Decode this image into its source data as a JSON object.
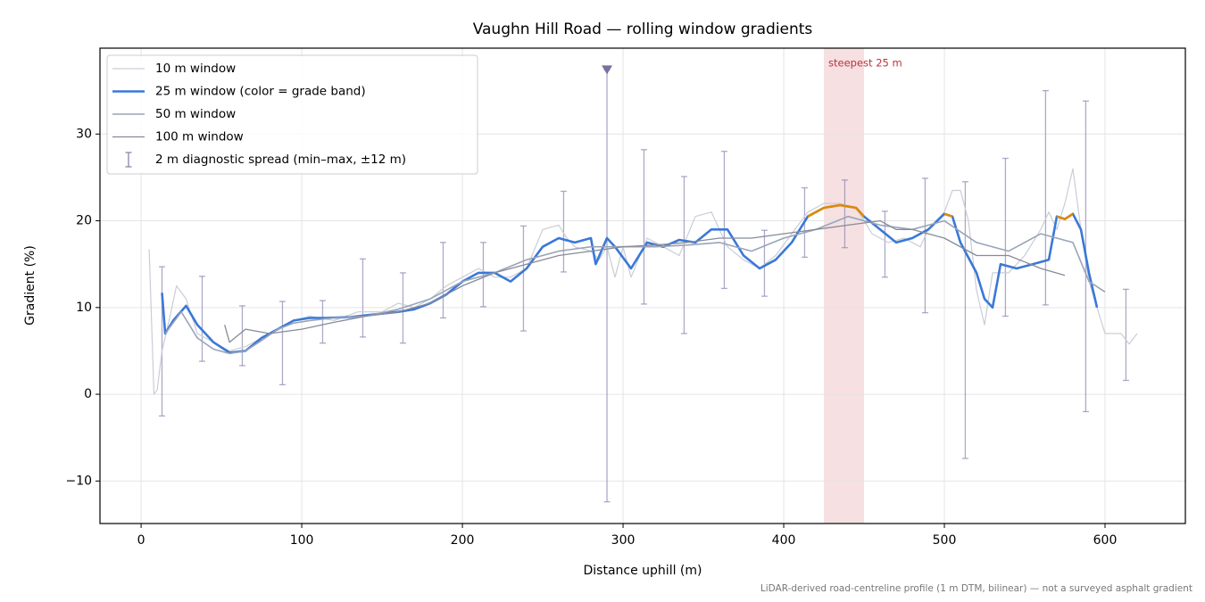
{
  "chart_data": {
    "type": "line",
    "title": "Vaughn Hill Road — rolling window gradients",
    "x_label": "Distance uphill (m)",
    "y_label": "Gradient (%)",
    "footnote": "LiDAR-derived road-centreline profile (1 m DTM, bilinear) — not a surveyed asphalt gradient",
    "xlim": [
      -25.6,
      650
    ],
    "ylim": [
      -14.9,
      39.9
    ],
    "xticks": [
      0,
      100,
      200,
      300,
      400,
      500,
      600
    ],
    "yticks": [
      {
        "value": -10,
        "label": "−10"
      },
      0,
      10,
      20,
      30
    ],
    "grid": true,
    "legend": "upper left",
    "series": [
      {
        "name": "10 m window",
        "color": "#c9cdd6",
        "width": 1.2,
        "x": [
          5,
          8,
          10,
          13,
          18,
          22,
          28,
          35,
          45,
          55,
          65,
          75,
          85,
          95,
          105,
          120,
          135,
          150,
          160,
          170,
          180,
          190,
          200,
          210,
          220,
          230,
          240,
          250,
          260,
          265,
          270,
          280,
          285,
          290,
          295,
          300,
          305,
          315,
          325,
          335,
          345,
          355,
          365,
          375,
          385,
          395,
          405,
          415,
          425,
          435,
          445,
          455,
          465,
          475,
          485,
          490,
          500,
          505,
          510,
          515,
          520,
          525,
          530,
          540,
          550,
          560,
          565,
          570,
          575,
          580,
          585,
          590,
          595,
          600,
          610,
          615,
          620
        ],
        "values": [
          16.7,
          0,
          0.5,
          5,
          9,
          12.5,
          11,
          7,
          6,
          5,
          5.5,
          6.5,
          7.5,
          8.5,
          9,
          8.5,
          9.5,
          9.5,
          10.5,
          10,
          11,
          12.5,
          13.5,
          14.5,
          13.5,
          13.5,
          14.5,
          19,
          19.5,
          18,
          17,
          16.5,
          15.5,
          17,
          13.5,
          17,
          13.5,
          18,
          17,
          16,
          20.5,
          21,
          17,
          15.5,
          14.5,
          16,
          18.5,
          21,
          22,
          22,
          21.5,
          18.5,
          17.5,
          18,
          17,
          19,
          21,
          23.5,
          23.5,
          20,
          12,
          8,
          14,
          14,
          16,
          19,
          21,
          19,
          22,
          26,
          19,
          13,
          10,
          7,
          7,
          5.8,
          7
        ]
      },
      {
        "name": "25 m window (color = grade band)",
        "color": "#3a78d8",
        "width": 2.6,
        "grade_bands": [
          {
            "min": 20,
            "color": "#e08a00"
          }
        ],
        "x": [
          13,
          15,
          20,
          28,
          35,
          45,
          55,
          65,
          75,
          85,
          95,
          105,
          115,
          130,
          145,
          160,
          170,
          180,
          190,
          200,
          210,
          220,
          230,
          240,
          250,
          260,
          270,
          280,
          283,
          290,
          295,
          305,
          315,
          325,
          335,
          345,
          355,
          365,
          375,
          385,
          395,
          405,
          415,
          425,
          435,
          445,
          450,
          460,
          470,
          480,
          490,
          500,
          505,
          510,
          520,
          525,
          530,
          535,
          545,
          555,
          565,
          570,
          575,
          580,
          585,
          590,
          595
        ],
        "values": [
          11.7,
          7,
          8.5,
          10.2,
          8,
          6,
          4.8,
          5,
          6.5,
          7.5,
          8.5,
          8.8,
          8.8,
          8.9,
          9.2,
          9.5,
          9.8,
          10.5,
          11.5,
          13,
          14,
          14,
          13,
          14.5,
          17,
          18,
          17.5,
          18,
          15,
          18,
          17,
          14.5,
          17.5,
          17,
          17.8,
          17.5,
          19,
          19,
          16,
          14.5,
          15.5,
          17.5,
          20.5,
          21.5,
          21.8,
          21.5,
          20.5,
          19,
          17.5,
          18,
          19,
          20.8,
          20.5,
          17.5,
          14,
          11,
          10,
          15,
          14.5,
          15,
          15.5,
          20.5,
          20.2,
          20.8,
          19,
          14,
          10
        ]
      },
      {
        "name": "50 m window",
        "color": "#9aa4b8",
        "width": 1.6,
        "x": [
          15,
          25,
          35,
          45,
          55,
          65,
          75,
          85,
          95,
          105,
          120,
          140,
          160,
          180,
          200,
          220,
          240,
          260,
          280,
          300,
          320,
          340,
          360,
          380,
          400,
          420,
          440,
          460,
          480,
          500,
          520,
          540,
          560,
          570,
          580,
          590,
          600
        ],
        "values": [
          7,
          9.5,
          6.5,
          5.2,
          4.7,
          5,
          6.2,
          7.5,
          8.2,
          8.5,
          8.8,
          9,
          9.8,
          11,
          13,
          14,
          15.5,
          16.5,
          17,
          17,
          17,
          17.2,
          17.5,
          16.5,
          18,
          19,
          20.5,
          19.5,
          19,
          20,
          17.5,
          16.5,
          18.5,
          18,
          17.5,
          13,
          11.8
        ]
      },
      {
        "name": "100 m window",
        "color": "#858b99",
        "width": 1.3,
        "x": [
          52,
          55,
          65,
          80,
          100,
          120,
          140,
          160,
          180,
          200,
          220,
          240,
          260,
          280,
          300,
          320,
          340,
          360,
          380,
          400,
          420,
          440,
          460,
          470,
          480,
          500,
          520,
          540,
          560,
          575
        ],
        "values": [
          8,
          6,
          7.5,
          7,
          7.5,
          8.3,
          9,
          9.5,
          10.5,
          12.5,
          14,
          15,
          16,
          16.5,
          17,
          17.2,
          17.5,
          18,
          18,
          18.5,
          19,
          19.5,
          20,
          19,
          19,
          18,
          16,
          16,
          14.5,
          13.7
        ]
      }
    ],
    "spread": {
      "name": "2 m diagnostic spread (min–max, ±12 m)",
      "color": "#8a86b0",
      "x": [
        13,
        38,
        63,
        88,
        113,
        138,
        163,
        188,
        213,
        238,
        263,
        290,
        313,
        338,
        363,
        388,
        413,
        438,
        463,
        488,
        513,
        538,
        563,
        588,
        613
      ],
      "lows": [
        -2.5,
        3.8,
        3.3,
        1.1,
        5.9,
        6.6,
        5.9,
        8.8,
        10.1,
        7.3,
        14.1,
        -12.4,
        10.4,
        7,
        12.2,
        11.3,
        15.8,
        16.9,
        13.5,
        9.4,
        -7.4,
        9,
        10.3,
        -2,
        1.6
      ],
      "highs": [
        14.7,
        13.6,
        10.2,
        10.7,
        10.8,
        15.6,
        14,
        17.5,
        17.5,
        19.4,
        23.4,
        37.4,
        28.2,
        25.1,
        28,
        18.9,
        23.8,
        24.7,
        21.1,
        24.9,
        24.5,
        27.2,
        35,
        33.8,
        12.1
      ]
    },
    "markers": [
      {
        "x": 290,
        "y": 37.4,
        "color": "#7a6fa0"
      }
    ],
    "highlight": {
      "text": "steepest 25 m",
      "x_range": [
        425,
        450
      ],
      "color": "#c0303a"
    }
  }
}
